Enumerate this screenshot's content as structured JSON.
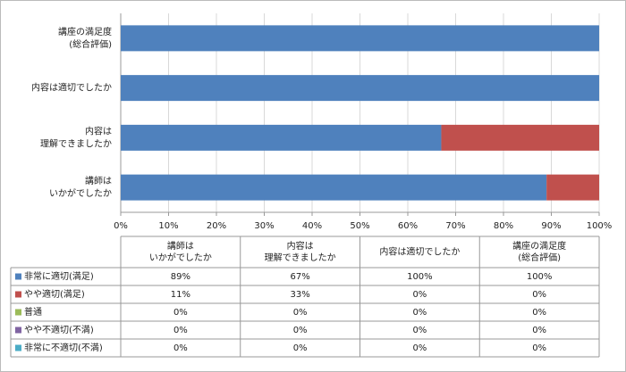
{
  "chart_data": {
    "type": "stacked-bar-horizontal",
    "categories": [
      [
        "講師は",
        "いかがでしたか"
      ],
      [
        "内容は",
        "理解できましたか"
      ],
      [
        "内容は適切でしたか"
      ],
      [
        "講座の満足度",
        "(総合評価)"
      ]
    ],
    "series": [
      {
        "name": "非常に適切(満足)",
        "color": "#4f81bd",
        "values": [
          89,
          67,
          100,
          100
        ],
        "value_labels": [
          "89%",
          "67%",
          "100%",
          "100%"
        ]
      },
      {
        "name": "やや適切(満足)",
        "color": "#c0504d",
        "values": [
          11,
          33,
          0,
          0
        ],
        "value_labels": [
          "11%",
          "33%",
          "0%",
          "0%"
        ]
      },
      {
        "name": "普通",
        "color": "#9bbb59",
        "values": [
          0,
          0,
          0,
          0
        ],
        "value_labels": [
          "0%",
          "0%",
          "0%",
          "0%"
        ]
      },
      {
        "name": "やや不適切(不満)",
        "color": "#8064a2",
        "values": [
          0,
          0,
          0,
          0
        ],
        "value_labels": [
          "0%",
          "0%",
          "0%",
          "0%"
        ]
      },
      {
        "name": "非常に不適切(不満)",
        "color": "#4bacc6",
        "values": [
          0,
          0,
          0,
          0
        ],
        "value_labels": [
          "0%",
          "0%",
          "0%",
          "0%"
        ]
      }
    ],
    "xlim": [
      0,
      100
    ],
    "xticks": [
      {
        "value": 0,
        "label": "0%"
      },
      {
        "value": 10,
        "label": "10%"
      },
      {
        "value": 20,
        "label": "20%"
      },
      {
        "value": 30,
        "label": "30%"
      },
      {
        "value": 40,
        "label": "40%"
      },
      {
        "value": 50,
        "label": "50%"
      },
      {
        "value": 60,
        "label": "60%"
      },
      {
        "value": 70,
        "label": "70%"
      },
      {
        "value": 80,
        "label": "80%"
      },
      {
        "value": 90,
        "label": "90%"
      },
      {
        "value": 100,
        "label": "100%"
      }
    ],
    "grid": true,
    "data_table": true
  }
}
